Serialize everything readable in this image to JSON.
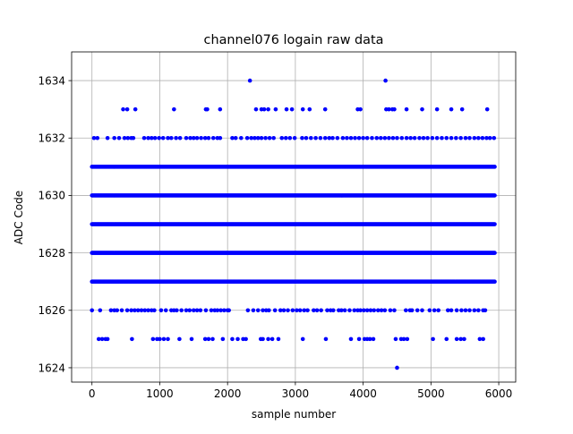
{
  "chart_data": {
    "type": "scatter",
    "title": "channel076 logain raw data",
    "xlabel": "sample number",
    "ylabel": "ADC Code",
    "xlim": [
      -300,
      6250
    ],
    "ylim": [
      1623.5,
      1635
    ],
    "x_ticks": [
      0,
      1000,
      2000,
      3000,
      4000,
      5000,
      6000
    ],
    "y_ticks": [
      1624,
      1626,
      1628,
      1630,
      1632,
      1634
    ],
    "grid": true,
    "marker_color": "#0000ff",
    "n_samples": 6000,
    "series": [
      {
        "values_dense": [
          {
            "y": 1627,
            "x_range": [
              0,
              5950
            ]
          },
          {
            "y": 1628,
            "x_range": [
              0,
              5950
            ]
          },
          {
            "y": 1629,
            "x_range": [
              0,
              5950
            ]
          },
          {
            "y": 1630,
            "x_range": [
              0,
              5950
            ]
          },
          {
            "y": 1631,
            "x_range": [
              0,
              5950
            ]
          }
        ],
        "values_sparse": [
          {
            "y": 1624,
            "x": [
              4500
            ]
          },
          {
            "y": 1625,
            "x": [
              100,
              150,
              200,
              230,
              590,
              900,
              960,
              1000,
              1060,
              1120,
              1290,
              1470,
              1670,
              1720,
              1780,
              1930,
              2070,
              2150,
              2230,
              2270,
              2490,
              2520,
              2600,
              2660,
              2750,
              3110,
              3450,
              3820,
              3940,
              4020,
              4060,
              4100,
              4150,
              4480,
              4560,
              4600,
              4650,
              5030,
              5230,
              5380,
              5440,
              5490,
              5720,
              5770
            ]
          },
          {
            "y": 1626,
            "x": [
              0,
              120,
              280,
              330,
              370,
              440,
              520,
              580,
              630,
              680,
              730,
              780,
              830,
              880,
              920,
              1020,
              1090,
              1170,
              1210,
              1250,
              1320,
              1390,
              1440,
              1500,
              1550,
              1600,
              1680,
              1760,
              1810,
              1850,
              1900,
              1950,
              2000,
              2020,
              2300,
              2380,
              2450,
              2520,
              2570,
              2610,
              2700,
              2780,
              2830,
              2890,
              2960,
              3020,
              3070,
              3130,
              3180,
              3270,
              3320,
              3380,
              3470,
              3520,
              3560,
              3640,
              3680,
              3730,
              3800,
              3870,
              3920,
              3960,
              4010,
              4060,
              4110,
              4160,
              4220,
              4270,
              4320,
              4400,
              4460,
              4630,
              4690,
              4720,
              4800,
              4870,
              4980,
              5050,
              5110,
              5250,
              5300,
              5380,
              5450,
              5510,
              5570,
              5640,
              5700,
              5770,
              5800
            ]
          },
          {
            "y": 1632,
            "x": [
              30,
              80,
              230,
              330,
              400,
              480,
              530,
              580,
              610,
              770,
              830,
              880,
              930,
              990,
              1050,
              1120,
              1170,
              1240,
              1300,
              1390,
              1450,
              1500,
              1550,
              1610,
              1670,
              1720,
              1790,
              1850,
              1890,
              2070,
              2120,
              2200,
              2290,
              2350,
              2400,
              2450,
              2500,
              2560,
              2620,
              2680,
              2800,
              2860,
              2920,
              2990,
              3100,
              3160,
              3230,
              3300,
              3370,
              3440,
              3500,
              3550,
              3620,
              3700,
              3760,
              3820,
              3880,
              3940,
              4000,
              4060,
              4130,
              4200,
              4260,
              4320,
              4380,
              4440,
              4500,
              4570,
              4640,
              4700,
              4760,
              4830,
              4890,
              4950,
              5020,
              5090,
              5160,
              5230,
              5300,
              5370,
              5440,
              5510,
              5570,
              5640,
              5700,
              5760,
              5820,
              5870,
              5930
            ]
          },
          {
            "y": 1633,
            "x": [
              460,
              520,
              640,
              1210,
              1680,
              1700,
              1890,
              2420,
              2500,
              2540,
              2600,
              2710,
              2870,
              2950,
              3110,
              3210,
              3440,
              3920,
              3960,
              4340,
              4380,
              4430,
              4460,
              4640,
              4870,
              5090,
              5300,
              5460,
              5830
            ]
          },
          {
            "y": 1634,
            "x": [
              2330,
              4330
            ]
          }
        ]
      }
    ]
  }
}
